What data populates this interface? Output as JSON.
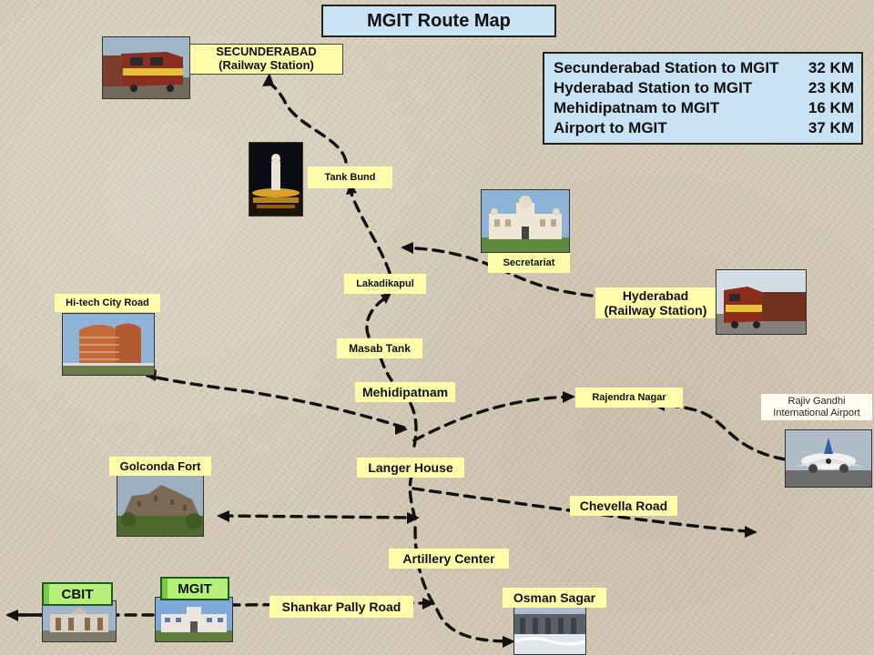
{
  "title": "MGIT Route Map",
  "distances": [
    {
      "route": "Secunderabad Station to MGIT",
      "km": "32 KM"
    },
    {
      "route": "Hyderabad Station to MGIT",
      "km": "23 KM"
    },
    {
      "route": "Mehidipatnam to MGIT",
      "km": "16 KM"
    },
    {
      "route": "Airport to MGIT",
      "km": "37 KM"
    }
  ],
  "places": {
    "secunderabad_line1": "SECUNDERABAD",
    "secunderabad_line2": "(Railway Station)",
    "tank_bund": "Tank Bund",
    "secretariat": "Secretariat",
    "lakadikapul": "Lakadikapul",
    "hyderabad_line1": "Hyderabad",
    "hyderabad_line2": "(Railway Station)",
    "hitech_city": "Hi-tech City Road",
    "masab_tank": "Masab Tank",
    "mehidipatnam": "Mehidipatnam",
    "rajendra_nagar": "Rajendra Nagar",
    "airport_line1": "Rajiv Gandhi",
    "airport_line2": "International Airport",
    "golconda_fort": "Golconda Fort",
    "langer_house": "Langer House",
    "chevella_road": "Chevella Road",
    "artillery_center": "Artillery Center",
    "osman_sagar": "Osman Sagar",
    "shankar_pally_road": "Shankar Pally Road",
    "mgit": "MGIT",
    "cbit": "CBIT"
  },
  "photos": {
    "secunderabad": "train-photo",
    "tank_bund": "buddha-statue-photo",
    "secretariat": "secretariat-building-photo",
    "hyderabad": "train-photo",
    "hitech_city": "office-tower-photo",
    "airport": "airplane-photo",
    "golconda": "fort-photo",
    "osman_sagar": "dam-photo",
    "mgit": "campus-photo",
    "cbit": "campus-photo"
  },
  "colors": {
    "info_box": "#c9e2f4",
    "place_label": "#fffcaa",
    "college_badge": "#b6f07a",
    "route_line": "#111111"
  }
}
